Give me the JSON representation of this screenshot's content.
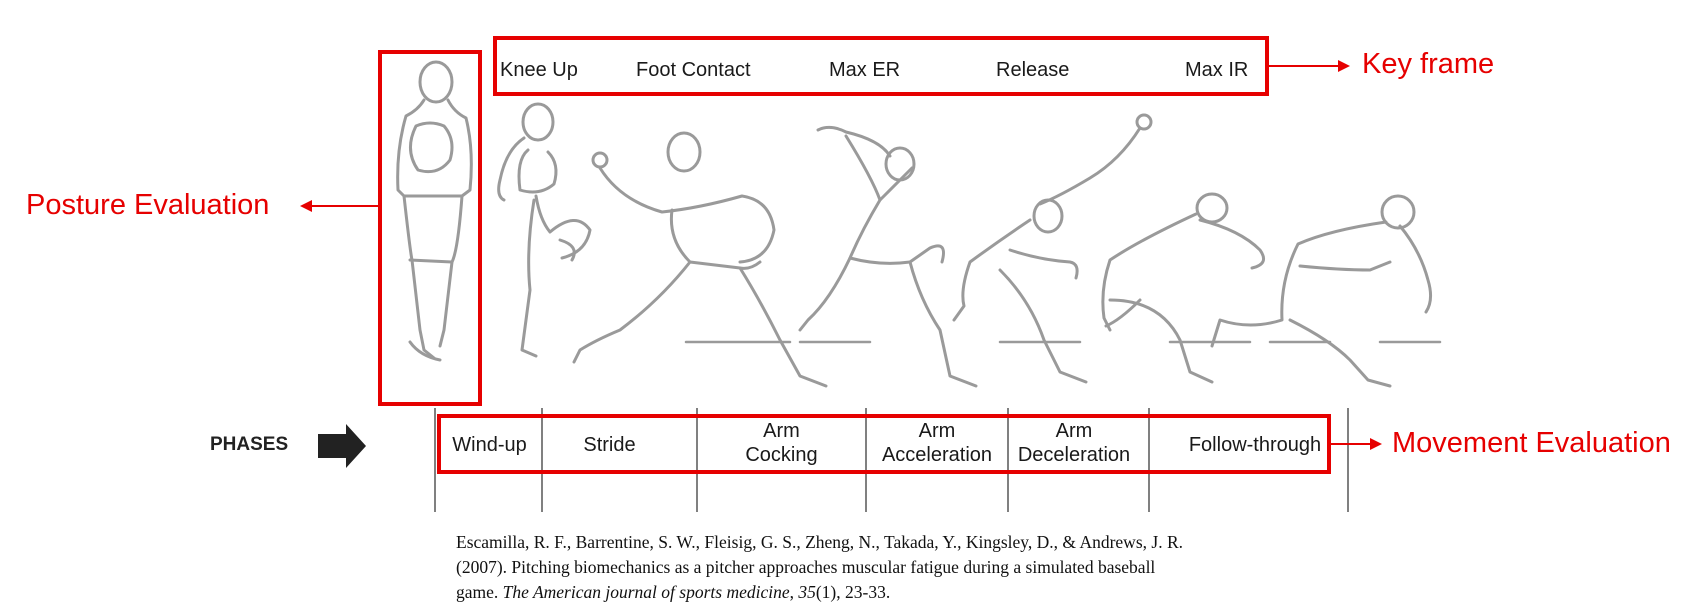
{
  "key_frames": [
    "Knee Up",
    "Foot Contact",
    "Max ER",
    "Release",
    "Max IR"
  ],
  "annotations": {
    "key_frame": "Key frame",
    "posture": "Posture Evaluation",
    "movement": "Movement Evaluation"
  },
  "phases_label": "PHASES",
  "phases": [
    {
      "line1": "Wind-up",
      "line2": ""
    },
    {
      "line1": "Stride",
      "line2": ""
    },
    {
      "line1": "Arm",
      "line2": "Cocking"
    },
    {
      "line1": "Arm",
      "line2": "Acceleration"
    },
    {
      "line1": "Arm",
      "line2": "Deceleration"
    },
    {
      "line1": "Follow-through",
      "line2": ""
    }
  ],
  "citation": {
    "line1": "Escamilla, R. F., Barrentine, S. W., Fleisig, G. S., Zheng, N., Takada, Y., Kingsley, D., & Andrews, J. R.",
    "line2": "(2007). Pitching biomechanics as a pitcher approaches muscular fatigue during a simulated baseball",
    "line3_pre": "game. ",
    "journal": "The American journal of sports medicine",
    "line3_mid": ", ",
    "volume": "35",
    "line3_post": "(1), 23-33."
  },
  "colors": {
    "accent": "#e60000",
    "figure": "#9a9a9a",
    "text": "#1a1a1a"
  }
}
